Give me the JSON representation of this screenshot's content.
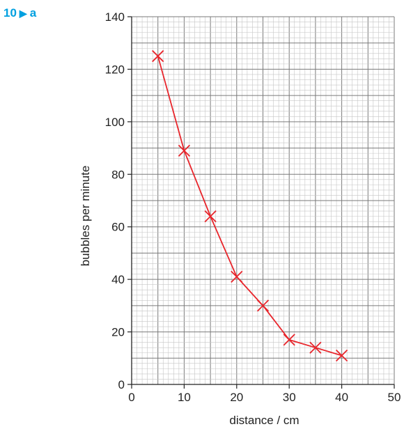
{
  "question": {
    "number": "10",
    "part": "a"
  },
  "colors": {
    "grid_minor": "#c6c6c6",
    "grid_major": "#7a7a7a",
    "series": "#e8252b",
    "question_accent": "#00a0e0"
  },
  "chart_data": {
    "type": "line",
    "title": "",
    "xlabel": "distance / cm",
    "ylabel": "bubbles per minute",
    "xlim": [
      0,
      50
    ],
    "ylim": [
      0,
      140
    ],
    "xticks": [
      0,
      10,
      20,
      30,
      40,
      50
    ],
    "yticks": [
      0,
      20,
      40,
      60,
      80,
      100,
      120,
      140
    ],
    "x_minor_step": 1,
    "y_minor_step": 2,
    "x_major_step": 5,
    "y_major_step": 10,
    "grid": true,
    "marker": "x",
    "series": [
      {
        "x": [
          5,
          10,
          15,
          20,
          25,
          30,
          35,
          40
        ],
        "y": [
          125,
          89,
          64,
          41,
          30,
          17,
          14,
          11
        ]
      }
    ]
  }
}
